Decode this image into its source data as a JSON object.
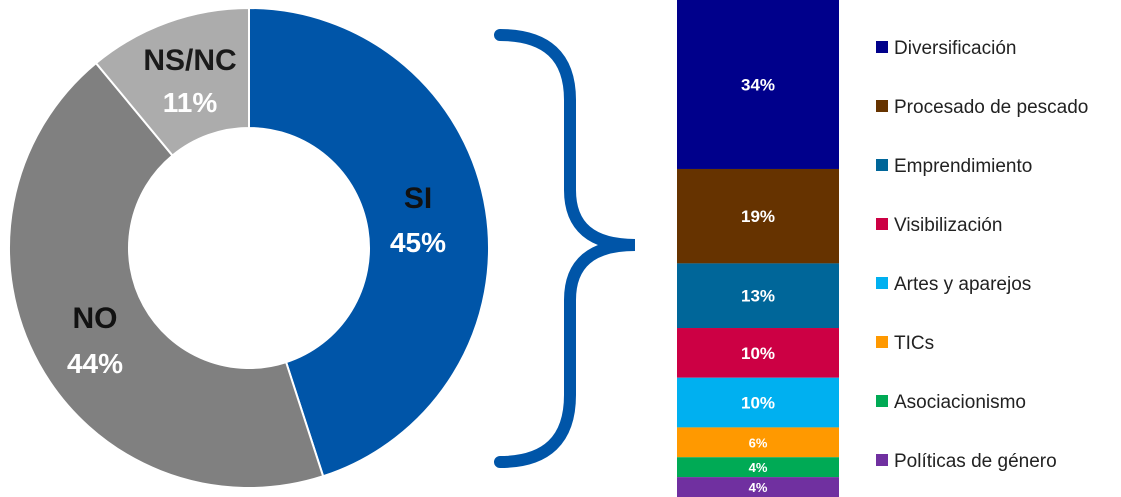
{
  "chart_data": [
    {
      "type": "pie",
      "subtype": "donut",
      "categories": [
        "SI",
        "NO",
        "NS/NC"
      ],
      "values": [
        45,
        44,
        11
      ],
      "value_labels": [
        "45%",
        "44%",
        "11%"
      ],
      "colors": [
        "#0055A8",
        "#808080",
        "#ACACAC"
      ],
      "label_colors": {
        "category": [
          "#111111",
          "#111111",
          "#1a1a1a"
        ],
        "value": [
          "#ffffff",
          "#ffffff",
          "#ffffff"
        ]
      }
    },
    {
      "type": "bar",
      "subtype": "stacked-100",
      "orientation": "vertical",
      "series": [
        {
          "name": "Diversificación",
          "value": 34,
          "label": "34%",
          "color": "#00008B"
        },
        {
          "name": "Procesado de pescado",
          "value": 19,
          "label": "19%",
          "color": "#663300"
        },
        {
          "name": "Emprendimiento",
          "value": 13,
          "label": "13%",
          "color": "#006699"
        },
        {
          "name": "Visibilización",
          "value": 10,
          "label": "10%",
          "color": "#CC0044"
        },
        {
          "name": "Artes y aparejos",
          "value": 10,
          "label": "10%",
          "color": "#00B0F0"
        },
        {
          "name": "TICs",
          "value": 6,
          "label": "6%",
          "color": "#FF9900"
        },
        {
          "name": "Asociacionismo",
          "value": 4,
          "label": "4%",
          "color": "#00AA55"
        },
        {
          "name": "Políticas de género",
          "value": 4,
          "label": "4%",
          "color": "#7030A0"
        }
      ],
      "legend_position": "right"
    }
  ],
  "connector": {
    "type": "curly-brace",
    "color": "#0055A8"
  }
}
